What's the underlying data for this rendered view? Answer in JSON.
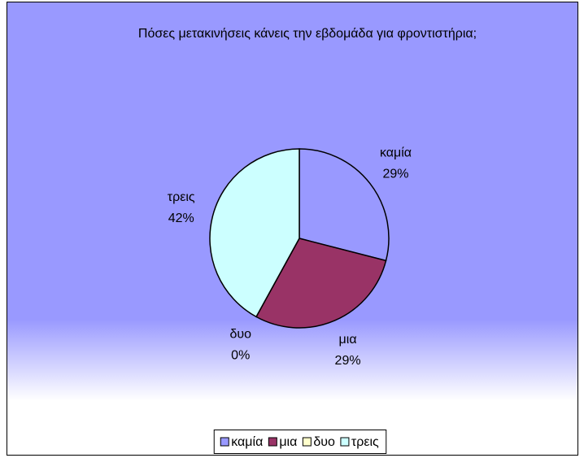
{
  "chart_data": {
    "type": "pie",
    "title": "Πόσες μετακινήσεις κάνεις την εβδομάδα για φροντιστήρια;",
    "categories": [
      "καμία",
      "μια",
      "δυο",
      "τρεις"
    ],
    "values": [
      29,
      29,
      0,
      42
    ],
    "value_labels": [
      "29%",
      "29%",
      "0%",
      "42%"
    ],
    "colors": [
      "#9999ff",
      "#993366",
      "#ffffcc",
      "#ccffff"
    ],
    "legend": "bottom"
  }
}
